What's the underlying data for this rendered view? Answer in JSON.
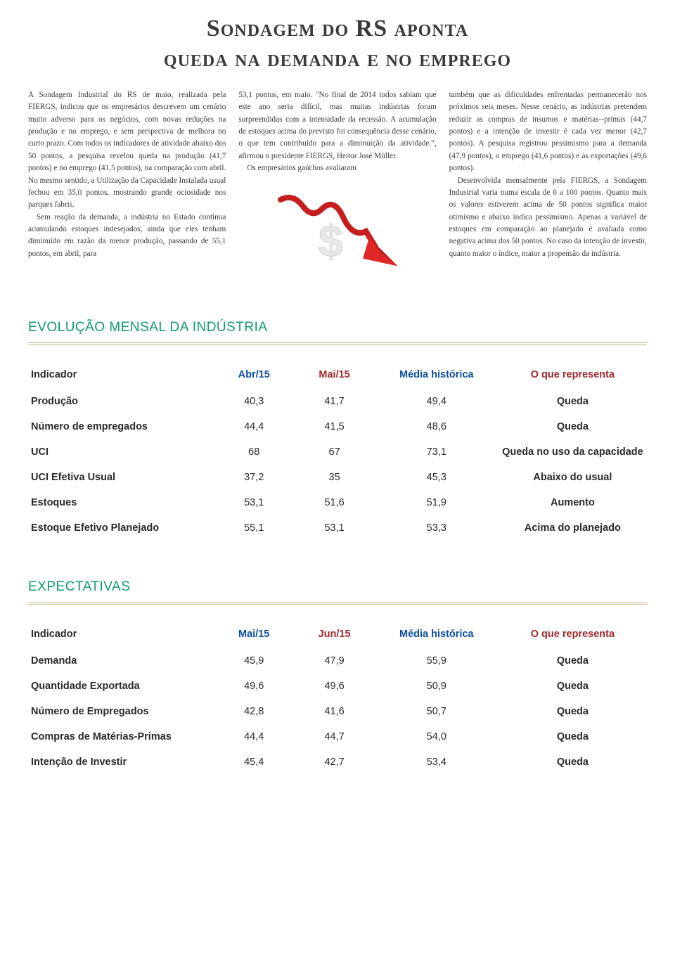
{
  "title_line1": "Sondagem do RS aponta",
  "title_line2": "queda na demanda e no emprego",
  "columns": {
    "col1": {
      "p1": "A Sondagem Industrial do RS de maio, realizada pela FIERGS, indicou que os empresários descrevem um cenário muito adverso para os negócios, com novas reduções na produção e no emprego, e sem perspectiva de melhora no curto prazo. Com todos os indicadores de atividade abaixo dos 50 pontos, a pesquisa revelou queda na produção (41,7 pontos) e no emprego (41,5 pontos), na comparação com abril. No mesmo sentido, a Utilização da Capacidade Instalada usual fechou em 35,0 pontos, mostrando grande ociosidade nos parques fabris.",
      "p2": "Sem reação da demanda, a indústria no Estado continua acumulando estoques indesejados, ainda que eles tenham diminuído em razão da menor produção, passando de 55,1 pontos, em abril, para"
    },
    "col2": {
      "p1": "53,1 pontos, em maio. \"No final de 2014 todos sabiam que este ano seria difícil, mas muitas indústrias foram surpreendidas com a intensidade da recessão. A acumulação de estoques acima do previsto foi consequência desse cenário, o que tem contribuído para a diminuição da atividade.\", afirmou o presidente FIERGS, Heitor José Müller.",
      "p2": "Os empresários gaúchos avaliaram"
    },
    "col3": {
      "p1": "também que as dificuldades enfrentadas permanecerão nos próximos seis meses. Nesse cenário, as indústrias pretendem reduzir as compras de insumos e matérias--primas (44,7 pontos) e a intenção de investir é cada vez menor (42,7 pontos). A pesquisa registrou pessimismo para a demanda (47,9 pontos), o emprego (41,6 pontos) e às exportações (49,6 pontos).",
      "p2": "Desenvolvida mensalmente pela FIERGS, a Sondagem Industrial varia numa escala de 0 a 100 pontos. Quanto mais os valores estiverem acima de 50 pontos significa maior otimismo e abaixo indica pessimismo. Apenas a variável de estoques em comparação ao planejado é avaliada como negativa acima dos 50 pontos. No caso da intenção de investir, quanto maior o índice, maior a propensão da indústria."
    }
  },
  "arrow": {
    "line_color": "#c41e1e",
    "head_color": "#e02828",
    "dollar_color": "#cfcfcf"
  },
  "section1_title": "EVOLUÇÃO MENSAL DA INDÚSTRIA",
  "section2_title": "EXPECTATIVAS",
  "table1": {
    "headers": {
      "c1": "Indicador",
      "c2": "Abr/15",
      "c3": "Mai/15",
      "c4": "Média histórica",
      "c5": "O que representa"
    },
    "rows": [
      {
        "c1": "Produção",
        "c2": "40,3",
        "c3": "41,7",
        "c4": "49,4",
        "c5": "Queda"
      },
      {
        "c1": "Número de empregados",
        "c2": "44,4",
        "c3": "41,5",
        "c4": "48,6",
        "c5": "Queda"
      },
      {
        "c1": "UCI",
        "c2": "68",
        "c3": "67",
        "c4": "73,1",
        "c5": "Queda no uso da capacidade"
      },
      {
        "c1": "UCI Efetiva Usual",
        "c2": "37,2",
        "c3": "35",
        "c4": "45,3",
        "c5": "Abaixo do usual"
      },
      {
        "c1": "Estoques",
        "c2": "53,1",
        "c3": "51,6",
        "c4": "51,9",
        "c5": "Aumento"
      },
      {
        "c1": "Estoque Efetivo Planejado",
        "c2": "55,1",
        "c3": "53,1",
        "c4": "53,3",
        "c5": "Acima do planejado"
      }
    ]
  },
  "table2": {
    "headers": {
      "c1": "Indicador",
      "c2": "Mai/15",
      "c3": "Jun/15",
      "c4": "Média histórica",
      "c5": "O que representa"
    },
    "rows": [
      {
        "c1": "Demanda",
        "c2": "45,9",
        "c3": "47,9",
        "c4": "55,9",
        "c5": "Queda"
      },
      {
        "c1": "Quantidade Exportada",
        "c2": "49,6",
        "c3": "49,6",
        "c4": "50,9",
        "c5": "Queda"
      },
      {
        "c1": "Número de Empregados",
        "c2": "42,8",
        "c3": "41,6",
        "c4": "50,7",
        "c5": "Queda"
      },
      {
        "c1": "Compras de Matérias-Primas",
        "c2": "44,4",
        "c3": "44,7",
        "c4": "54,0",
        "c5": "Queda"
      },
      {
        "c1": "Intenção de Investir",
        "c2": "45,4",
        "c3": "42,7",
        "c4": "53,4",
        "c5": "Queda"
      }
    ]
  },
  "colors": {
    "title_color": "#3a3a3a",
    "section_color": "#109a6c",
    "sep_color": "#c9b38a",
    "header_blue": "#0a4fa0",
    "header_red": "#a02a2a",
    "body_text": "#3a3a3a",
    "background": "#ffffff"
  }
}
